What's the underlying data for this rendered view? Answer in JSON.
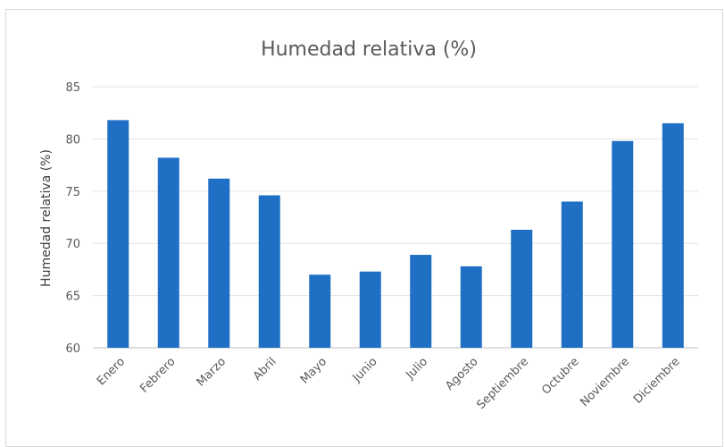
{
  "chart_data": {
    "type": "bar",
    "title": "Humedad relativa (%)",
    "xlabel": "",
    "ylabel": "Humedad relativa (%)",
    "ylim": [
      60,
      85
    ],
    "yticks": [
      60,
      65,
      70,
      75,
      80,
      85
    ],
    "categories": [
      "Enero",
      "Febrero",
      "Marzo",
      "Abril",
      "Mayo",
      "Junio",
      "Julio",
      "Agosto",
      "Septiembre",
      "Octubre",
      "Noviembre",
      "Diciembre"
    ],
    "values": [
      81.8,
      78.2,
      76.2,
      74.6,
      67.0,
      67.3,
      68.9,
      67.8,
      71.3,
      74.0,
      79.8,
      81.5
    ],
    "bar_color": "#1f6fc5",
    "grid": true,
    "legend": "none"
  }
}
